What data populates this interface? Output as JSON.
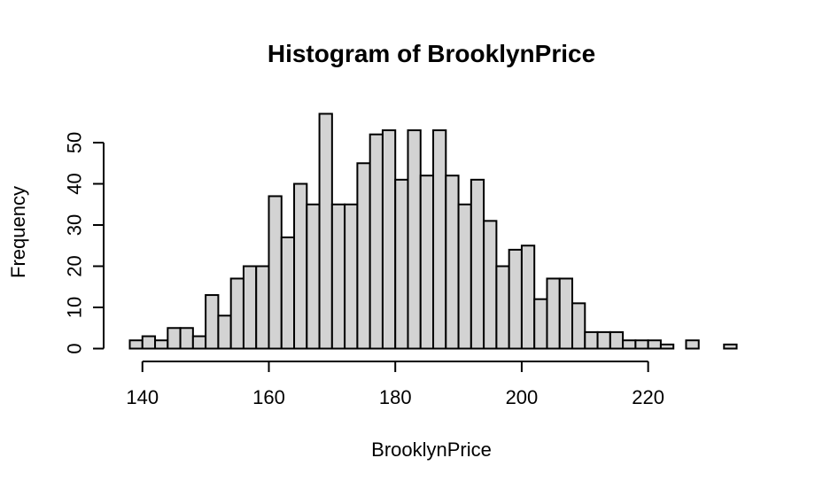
{
  "chart_data": {
    "type": "bar",
    "title": "Histogram of BrooklynPrice",
    "xlabel": "BrooklynPrice",
    "ylabel": "Frequency",
    "bin_width": 2,
    "bin_starts": [
      138,
      140,
      142,
      144,
      146,
      148,
      150,
      152,
      154,
      156,
      158,
      160,
      162,
      164,
      166,
      168,
      170,
      172,
      174,
      176,
      178,
      180,
      182,
      184,
      186,
      188,
      190,
      192,
      194,
      196,
      198,
      200,
      202,
      204,
      206,
      208,
      210,
      212,
      214,
      216,
      218,
      220,
      222,
      224,
      226,
      228,
      230,
      232
    ],
    "values": [
      2,
      3,
      2,
      5,
      5,
      3,
      13,
      8,
      17,
      20,
      20,
      37,
      27,
      40,
      35,
      57,
      35,
      35,
      45,
      52,
      53,
      41,
      53,
      42,
      53,
      42,
      35,
      41,
      31,
      20,
      24,
      25,
      12,
      17,
      17,
      11,
      4,
      4,
      4,
      2,
      2,
      2,
      1,
      0,
      2,
      0,
      0,
      1
    ],
    "xlim": [
      138,
      234
    ],
    "ylim": [
      0,
      57
    ],
    "x_ticks": [
      "140",
      "160",
      "180",
      "200",
      "220"
    ],
    "y_ticks": [
      "0",
      "10",
      "20",
      "30",
      "40",
      "50"
    ],
    "bar_color": "#d3d3d3",
    "grid": false
  }
}
